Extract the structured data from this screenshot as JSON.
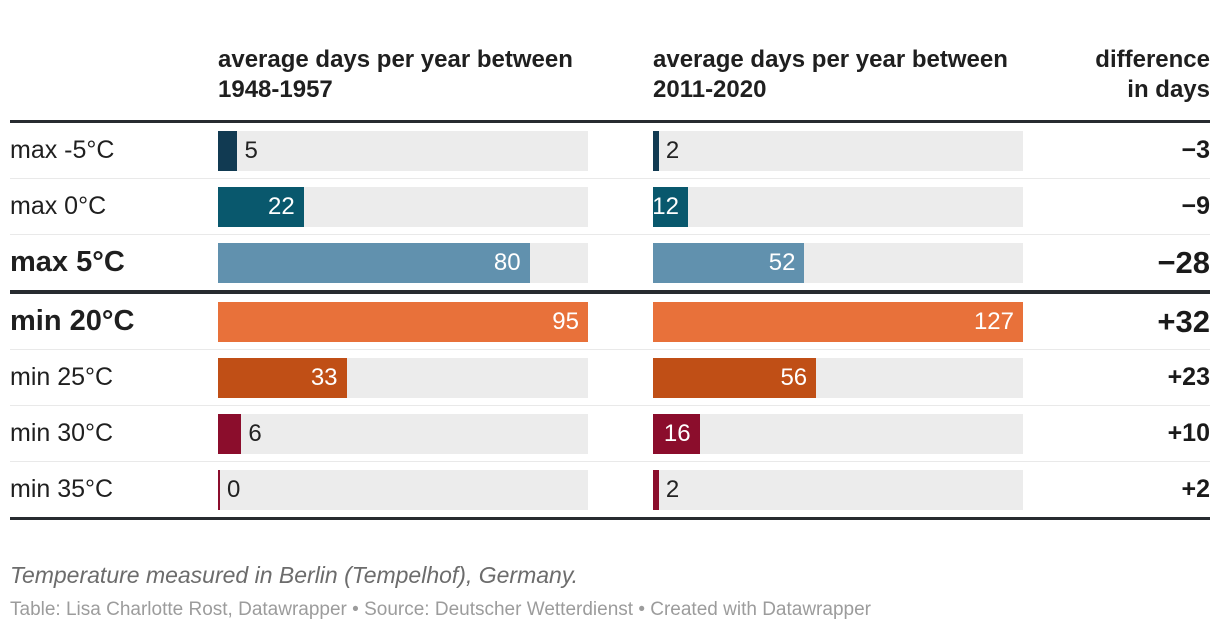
{
  "header": {
    "col1_line1": "average days per year between",
    "col1_line2": "1948-1957",
    "col2_line1": "average days per year between",
    "col2_line2": "2011-2020",
    "diff_line1": "difference",
    "diff_line2": "in days"
  },
  "chart_data": {
    "type": "bar",
    "categories": [
      "max -5°C",
      "max 0°C",
      "max 5°C",
      "min 20°C",
      "min 25°C",
      "min 30°C",
      "min 35°C"
    ],
    "series": [
      {
        "name": "average days per year between 1948-1957",
        "values": [
          5,
          22,
          80,
          95,
          33,
          6,
          0
        ]
      },
      {
        "name": "average days per year between 2011-2020",
        "values": [
          2,
          12,
          52,
          127,
          56,
          16,
          2
        ]
      }
    ],
    "differences": [
      "−3",
      "−9",
      "−28",
      "+32",
      "+23",
      "+10",
      "+2"
    ],
    "col1_max": 95,
    "col2_max": 127,
    "bar_colors": [
      "#113a52",
      "#09586d",
      "#6191ae",
      "#e8713a",
      "#c04f16",
      "#8b0d2c",
      "#8b0d2c"
    ],
    "track_color": "#ececec",
    "emphasized_rows": [
      "max 5°C",
      "min 20°C"
    ],
    "legend_position": "none",
    "grid": "off"
  },
  "rows": [
    {
      "label": "max -5°C",
      "bold": false,
      "color": "#113a52",
      "v1": 5,
      "v2": 2,
      "diff": "−3",
      "v1_inside": false,
      "v2_inside": false
    },
    {
      "label": "max 0°C",
      "bold": false,
      "color": "#09586d",
      "v1": 22,
      "v2": 12,
      "diff": "−9",
      "v1_inside": true,
      "v2_inside": true
    },
    {
      "label": "max 5°C",
      "bold": true,
      "color": "#6191ae",
      "v1": 80,
      "v2": 52,
      "diff": "−28",
      "v1_inside": true,
      "v2_inside": true
    },
    {
      "label": "min 20°C",
      "bold": true,
      "color": "#e8713a",
      "v1": 95,
      "v2": 127,
      "diff": "+32",
      "v1_inside": true,
      "v2_inside": true
    },
    {
      "label": "min 25°C",
      "bold": false,
      "color": "#c04f16",
      "v1": 33,
      "v2": 56,
      "diff": "+23",
      "v1_inside": true,
      "v2_inside": true
    },
    {
      "label": "min 30°C",
      "bold": false,
      "color": "#8b0d2c",
      "v1": 6,
      "v2": 16,
      "diff": "+10",
      "v1_inside": false,
      "v2_inside": true
    },
    {
      "label": "min 35°C",
      "bold": false,
      "color": "#8b0d2c",
      "v1": 0,
      "v2": 2,
      "diff": "+2",
      "v1_inside": false,
      "v2_inside": false
    }
  ],
  "group_break_index": 3,
  "note": "Temperature measured in Berlin (Tempelhof), Germany.",
  "credits": "Table: Lisa Charlotte Rost, Datawrapper • Source: Deutscher Wetterdienst • Created with Datawrapper"
}
